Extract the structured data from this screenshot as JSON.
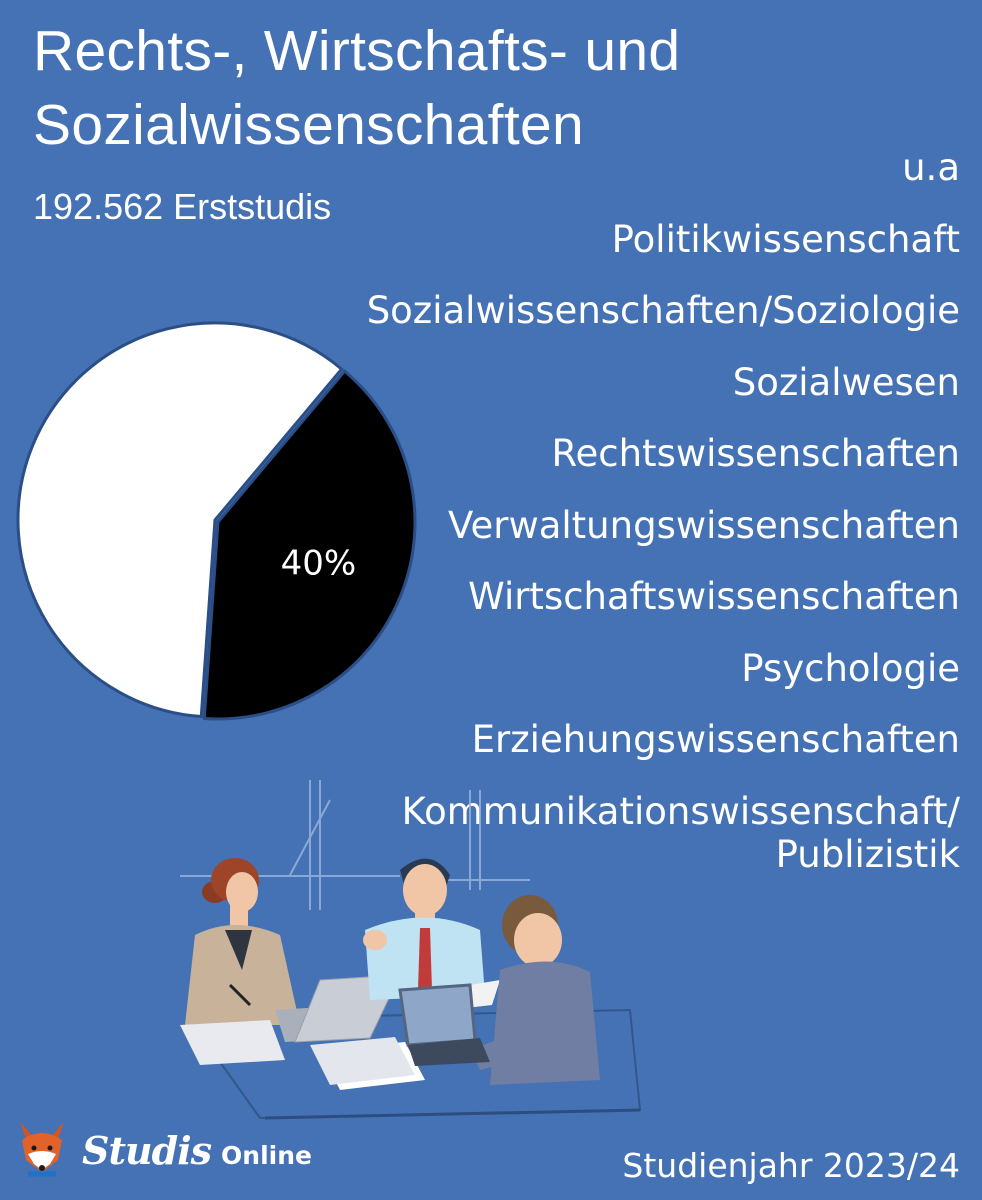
{
  "header": {
    "title_line1": "Rechts-, Wirtschafts- und",
    "title_line2": "Sozialwissenschaften",
    "subtitle": "192.562 Erststudis"
  },
  "chart_data": {
    "type": "pie",
    "title": "Rechts-, Wirtschafts- und Sozialwissenschaften",
    "slices": [
      {
        "value": 40,
        "label": "40%",
        "color": "#000000"
      },
      {
        "value": 60,
        "label": "",
        "color": "#ffffff"
      }
    ]
  },
  "fields": [
    "u.a",
    "Politikwissenschaft",
    "Sozialwissenschaften/Soziologie",
    "Sozialwesen",
    "Rechtswissenschaften",
    "Verwaltungswissenschaften",
    "Wirtschaftswissenschaften",
    "Psychologie",
    "Erziehungswissenschaften",
    "Kommunikationswissenschaft/\nPublizistik"
  ],
  "logo": {
    "script": "Studis",
    "sub": "Online",
    "icon": "fox-icon"
  },
  "footer": {
    "year": "Studienjahr 2023/24"
  },
  "colors": {
    "background": "#4472b4",
    "text": "#ffffff",
    "pie_highlight": "#000000",
    "pie_rest": "#ffffff"
  }
}
